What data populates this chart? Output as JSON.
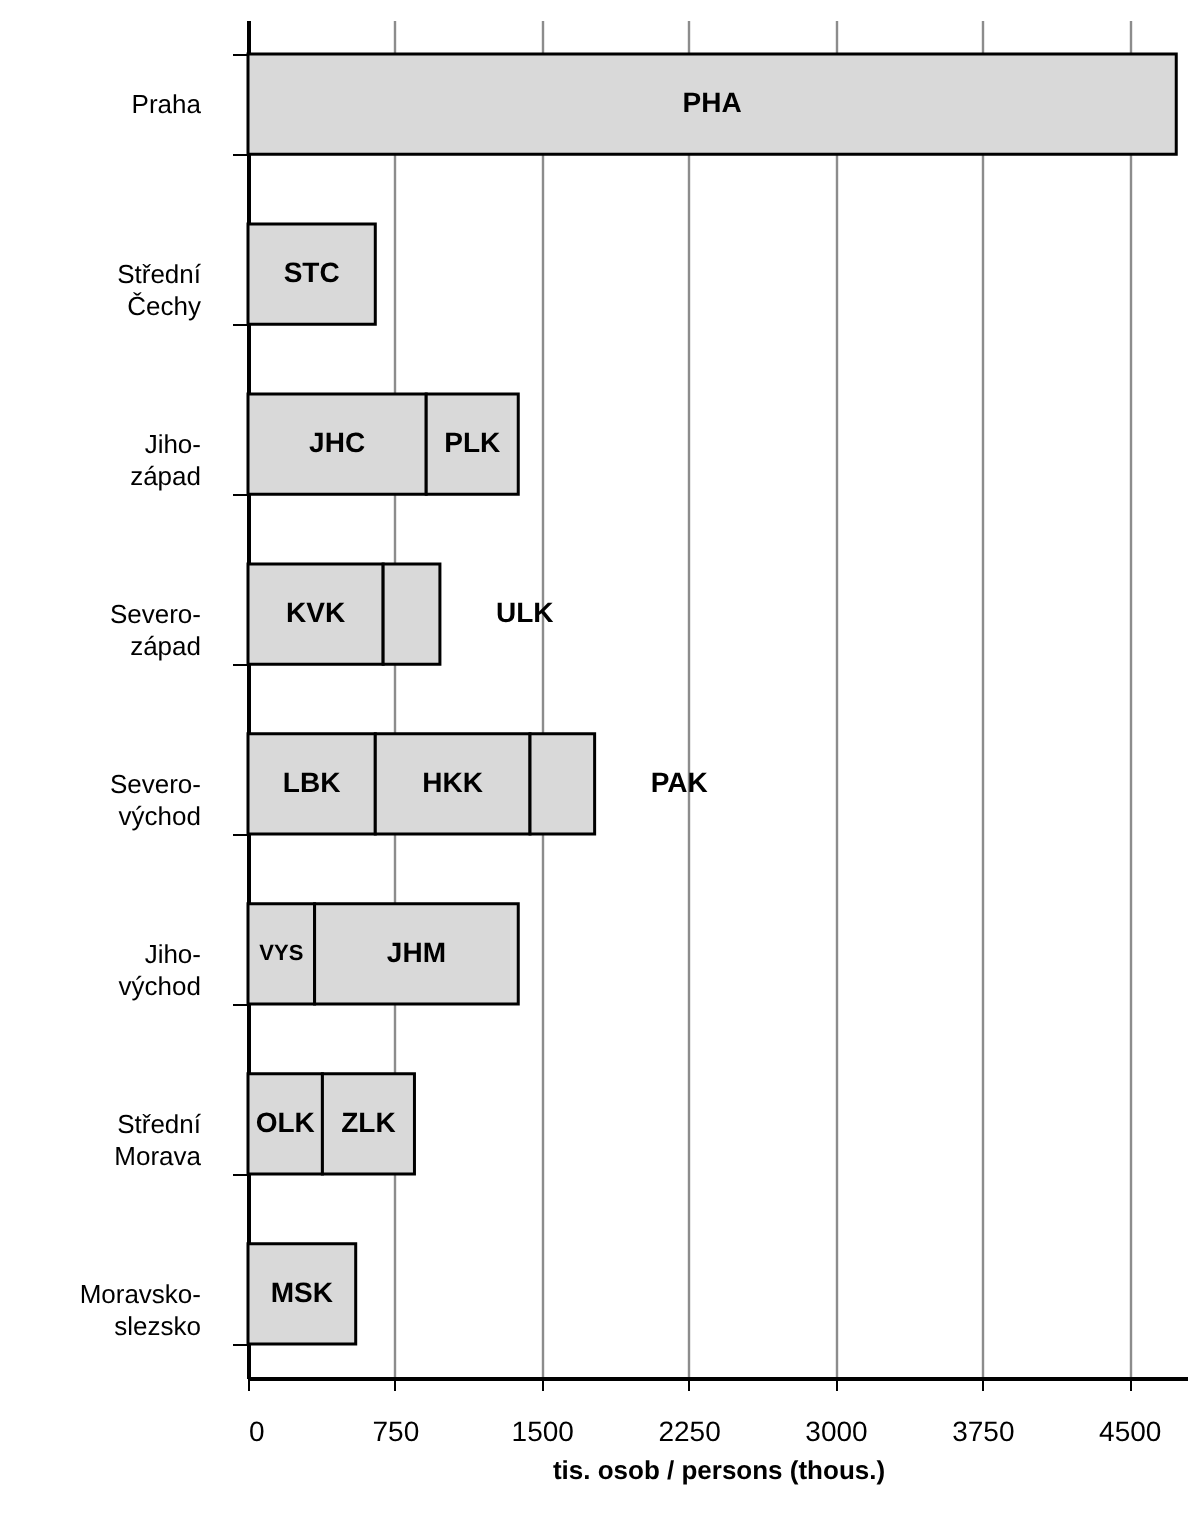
{
  "chart_data": {
    "type": "bar",
    "orientation": "horizontal",
    "stacked": true,
    "xlabel": "tis. osob / persons (thous.)",
    "categories": [
      "Praha",
      "Střední Čechy",
      "Jiho-západ",
      "Severo-západ",
      "Severo-východ",
      "Jiho-východ",
      "Střední Morava",
      "Moravsko-slezsko"
    ],
    "series": [
      {
        "name": "PHA",
        "color": "#d9d9d9",
        "values": [
          4740,
          null,
          null,
          null,
          null,
          null,
          null,
          null
        ]
      },
      {
        "name": "STC",
        "color": "#d9d9d9",
        "values": [
          null,
          650,
          null,
          null,
          null,
          null,
          null,
          null
        ]
      },
      {
        "name": "JHC",
        "color": "#d9d9d9",
        "values": [
          null,
          null,
          910,
          null,
          null,
          null,
          null,
          null
        ]
      },
      {
        "name": "PLK",
        "color": "#d9d9d9",
        "values": [
          null,
          null,
          470,
          null,
          null,
          null,
          null,
          null
        ]
      },
      {
        "name": "KVK",
        "color": "#d9d9d9",
        "values": [
          null,
          null,
          null,
          690,
          null,
          null,
          null,
          null
        ]
      },
      {
        "name": "ULK",
        "color": "#d9d9d9",
        "values": [
          null,
          null,
          null,
          290,
          null,
          null,
          null,
          null
        ]
      },
      {
        "name": "LBK",
        "color": "#d9d9d9",
        "values": [
          null,
          null,
          null,
          null,
          650,
          null,
          null,
          null
        ]
      },
      {
        "name": "HKK",
        "color": "#d9d9d9",
        "values": [
          null,
          null,
          null,
          null,
          790,
          null,
          null,
          null
        ]
      },
      {
        "name": "PAK",
        "color": "#d9d9d9",
        "values": [
          null,
          null,
          null,
          null,
          330,
          null,
          null,
          null
        ]
      },
      {
        "name": "VYS",
        "color": "#d9d9d9",
        "values": [
          null,
          null,
          null,
          null,
          null,
          340,
          null,
          null
        ]
      },
      {
        "name": "JHM",
        "color": "#d9d9d9",
        "values": [
          null,
          null,
          null,
          null,
          null,
          1040,
          null,
          null
        ]
      },
      {
        "name": "OLK",
        "color": "#d9d9d9",
        "values": [
          null,
          null,
          null,
          null,
          null,
          null,
          380,
          null
        ]
      },
      {
        "name": "ZLK",
        "color": "#d9d9d9",
        "values": [
          null,
          null,
          null,
          null,
          null,
          null,
          470,
          null
        ]
      },
      {
        "name": "MSK",
        "color": "#d9d9d9",
        "values": [
          null,
          null,
          null,
          null,
          null,
          null,
          null,
          550
        ]
      }
    ],
    "xlim": [
      0,
      4800
    ],
    "xticks": [
      0,
      750,
      1500,
      2250,
      3000,
      3750,
      4500
    ],
    "grid": "x"
  }
}
